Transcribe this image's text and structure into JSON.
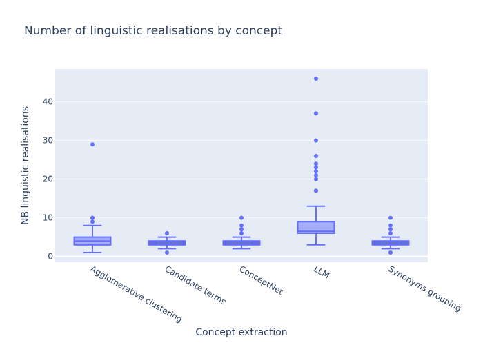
{
  "chart_data": {
    "type": "box",
    "title": "Number of linguistic realisations by concept",
    "xlabel": "Concept extraction",
    "ylabel": "NB linguistic realisations",
    "ylim": [
      -1.5,
      48.5
    ],
    "yticks": [
      0,
      10,
      20,
      30,
      40
    ],
    "grid": true,
    "legend": "none",
    "colors": {
      "box_line": "#636efa",
      "box_fill": "rgba(99,110,250,0.5)",
      "plot_bg": "#e5ecf6",
      "grid": "#ffffff",
      "text": "#2a3f5f"
    },
    "categories": [
      "Agglomerative clustering",
      "Candidate terms",
      "ConceptNet",
      "LLM",
      "Synonyms grouping"
    ],
    "boxes": [
      {
        "category": "Agglomerative clustering",
        "lower_whisker": 1,
        "q1": 3,
        "median": 4,
        "q3": 5,
        "upper_whisker": 8,
        "outliers": [
          9,
          10,
          29
        ]
      },
      {
        "category": "Candidate terms",
        "lower_whisker": 2,
        "q1": 3,
        "median": 3.5,
        "q3": 4,
        "upper_whisker": 5,
        "outliers": [
          1,
          6,
          6
        ]
      },
      {
        "category": "ConceptNet",
        "lower_whisker": 2,
        "q1": 3,
        "median": 3.5,
        "q3": 4,
        "upper_whisker": 5,
        "outliers": [
          6,
          7,
          8,
          10
        ]
      },
      {
        "category": "LLM",
        "lower_whisker": 3,
        "q1": 6,
        "median": 6.5,
        "q3": 9,
        "upper_whisker": 13,
        "outliers": [
          17,
          17,
          20,
          21,
          22,
          23,
          24,
          26,
          30,
          37,
          46
        ]
      },
      {
        "category": "Synonyms grouping",
        "lower_whisker": 2,
        "q1": 3,
        "median": 3.5,
        "q3": 4,
        "upper_whisker": 5,
        "outliers": [
          1,
          6,
          7,
          8,
          10
        ]
      }
    ]
  }
}
